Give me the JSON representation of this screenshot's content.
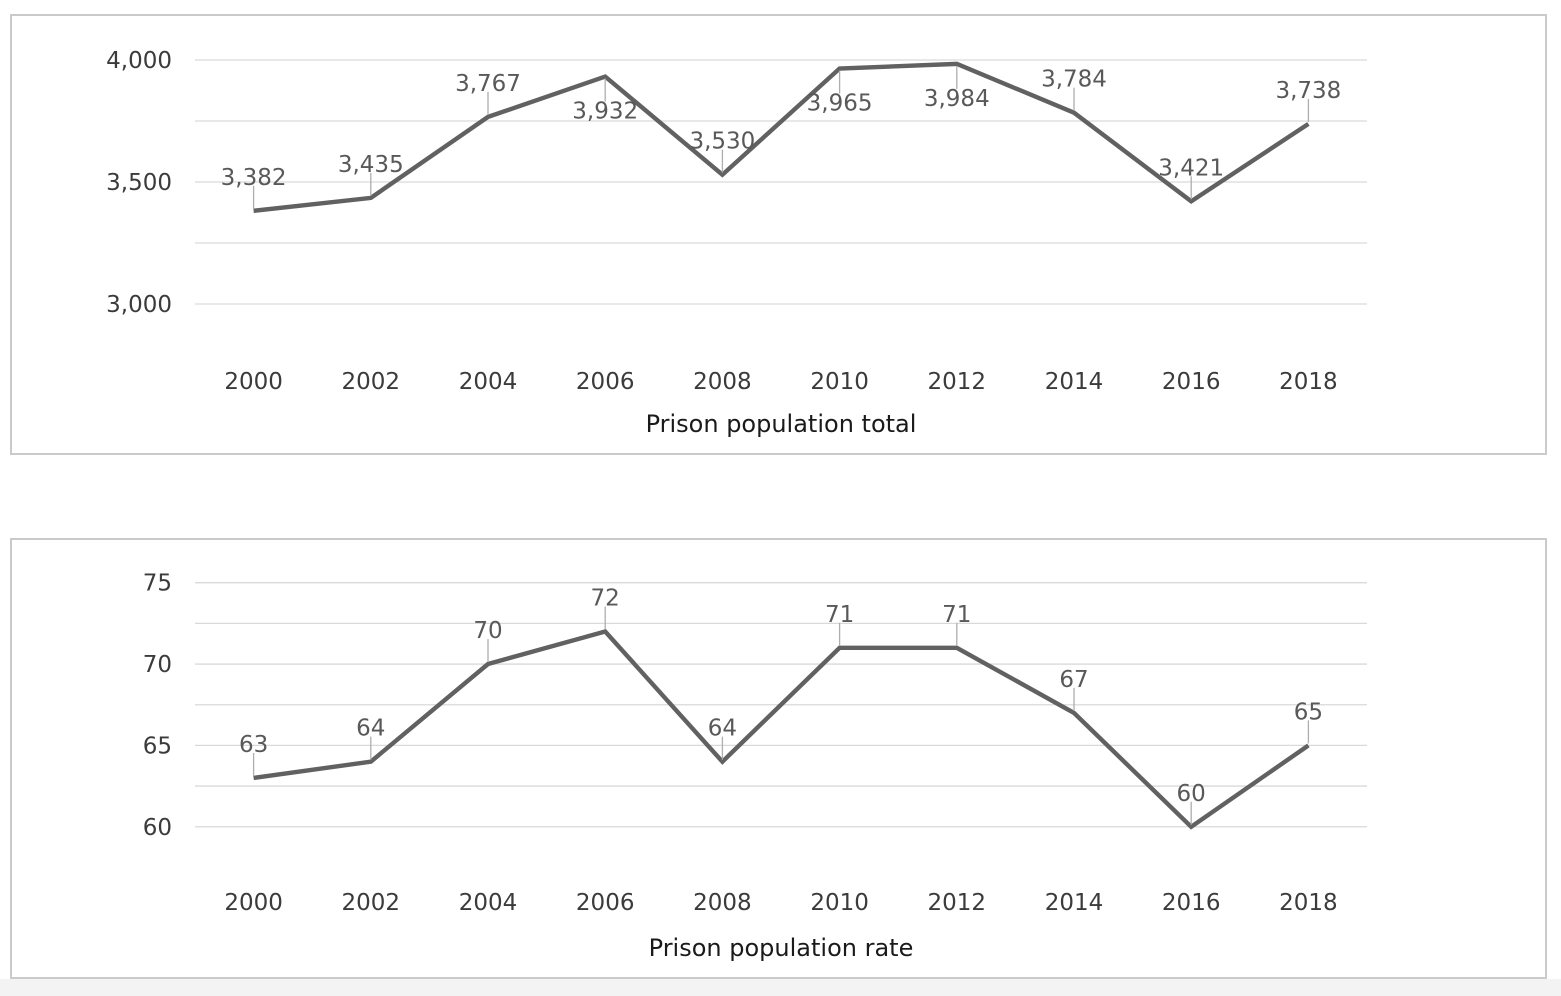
{
  "colors": {
    "series_line": "#616161",
    "gridline": "#d9d9d9",
    "callout_line": "#aeaeae",
    "data_label": "#595959",
    "tick_label": "#3b3b3b",
    "title": "#1a1a1a",
    "panel_border": "#cacaca",
    "footer_strip": "#f3f3f3"
  },
  "chart_data": [
    {
      "type": "line",
      "title": "Prison population total",
      "title_position": "below-x-axis",
      "categories": [
        "2000",
        "2002",
        "2004",
        "2006",
        "2008",
        "2010",
        "2012",
        "2014",
        "2016",
        "2018"
      ],
      "values": [
        3382,
        3435,
        3767,
        3932,
        3530,
        3965,
        3984,
        3784,
        3421,
        3738
      ],
      "data_labels": [
        "3,382",
        "3,435",
        "3,767",
        "3,932",
        "3,530",
        "3,965",
        "3,984",
        "3,784",
        "3,421",
        "3,738"
      ],
      "label_side": [
        "above",
        "above",
        "above",
        "below",
        "above",
        "below",
        "below",
        "above",
        "above",
        "above"
      ],
      "ylim": [
        3000,
        4000
      ],
      "yticks": [
        {
          "value": 4000,
          "label": "4,000"
        },
        {
          "value": 3500,
          "label": "3,500"
        },
        {
          "value": 3000,
          "label": "3,000"
        }
      ],
      "gridline_values": [
        4000,
        3750,
        3500,
        3250,
        3000
      ],
      "legend": "none",
      "grid": "horizontal"
    },
    {
      "type": "line",
      "title": "Prison population rate",
      "title_position": "below-x-axis",
      "categories": [
        "2000",
        "2002",
        "2004",
        "2006",
        "2008",
        "2010",
        "2012",
        "2014",
        "2016",
        "2018"
      ],
      "values": [
        63,
        64,
        70,
        72,
        64,
        71,
        71,
        67,
        60,
        65
      ],
      "data_labels": [
        "63",
        "64",
        "70",
        "72",
        "64",
        "71",
        "71",
        "67",
        "60",
        "65"
      ],
      "label_side": [
        "above",
        "above",
        "above",
        "above",
        "above",
        "above",
        "above",
        "above",
        "above",
        "above"
      ],
      "ylim": [
        60,
        75
      ],
      "yticks": [
        {
          "value": 75,
          "label": "75"
        },
        {
          "value": 70,
          "label": "70"
        },
        {
          "value": 65,
          "label": "65"
        },
        {
          "value": 60,
          "label": "60"
        }
      ],
      "gridline_values": [
        75,
        72.5,
        70,
        67.5,
        65,
        62.5,
        60
      ],
      "legend": "none",
      "grid": "horizontal"
    }
  ]
}
